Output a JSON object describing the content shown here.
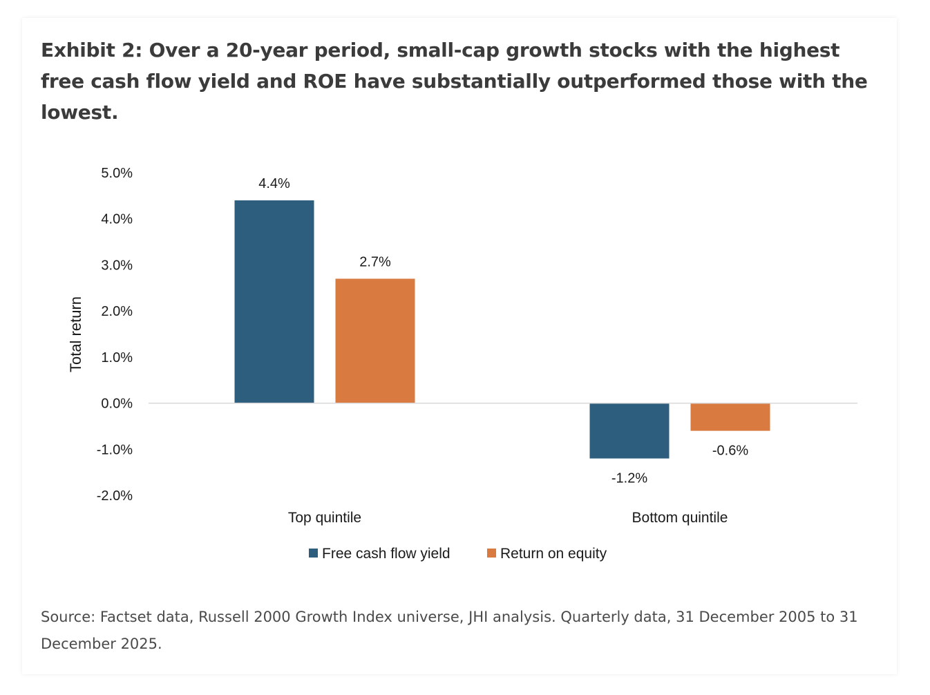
{
  "title": "Exhibit 2: Over a 20-year period, small-cap growth stocks with the highest free cash flow yield and ROE have substantially outperformed those with the lowest.",
  "source": "Source: Factset data, Russell 2000 Growth Index universe, JHI analysis. Quarterly data, 31 December 2005 to 31 December 2025.",
  "colors": {
    "fcf": "#2e5e7e",
    "roe": "#d97a40",
    "text": "#1a1a1a",
    "axis": "#d9d9d9"
  },
  "chart_data": {
    "type": "bar",
    "categories": [
      "Top quintile",
      "Bottom quintile"
    ],
    "series": [
      {
        "name": "Free cash flow yield",
        "values": [
          4.4,
          -1.2
        ],
        "labels": [
          "4.4%",
          "-1.2%"
        ]
      },
      {
        "name": "Return on equity",
        "values": [
          2.7,
          -0.6
        ],
        "labels": [
          "2.7%",
          "-0.6%"
        ]
      }
    ],
    "ylabel": "Total return",
    "ylim": [
      -2.0,
      5.0
    ],
    "yticks": [
      "5.0%",
      "4.0%",
      "3.0%",
      "2.0%",
      "1.0%",
      "0.0%",
      "-1.0%",
      "-2.0%"
    ],
    "legend": "bottom",
    "grid": false
  }
}
